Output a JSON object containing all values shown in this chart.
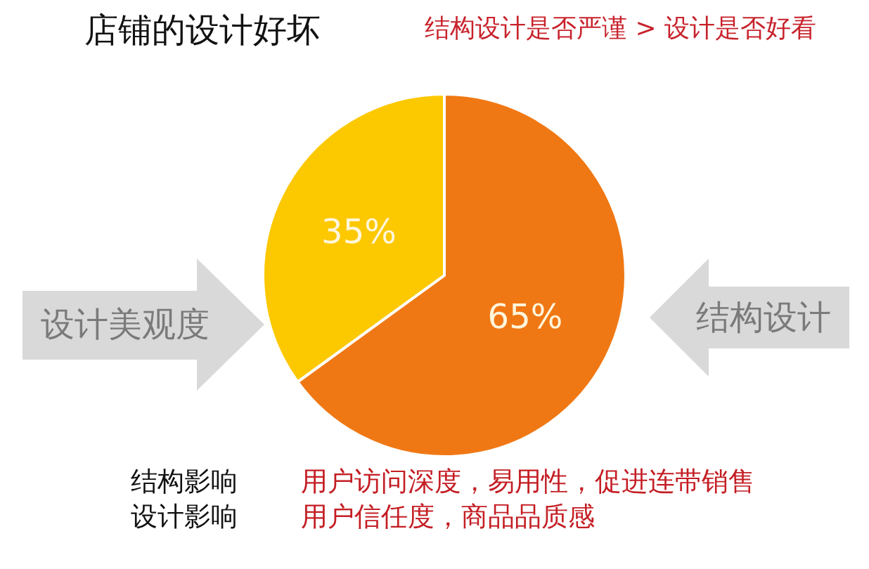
{
  "chart_data": {
    "type": "pie",
    "title": "店铺的设计好坏",
    "subtitle": "结构设计是否严谨 > 设计是否好看",
    "categories": [
      "结构设计",
      "设计美观度"
    ],
    "values": [
      65,
      35
    ],
    "colors": [
      "#f07814",
      "#fcc800"
    ],
    "value_labels": [
      "65%",
      "35%"
    ],
    "legend": false,
    "annotations": [
      "结构影响",
      "用户访问深度，易用性，促进连带销售",
      "设计影响",
      "用户信任度，商品品质感"
    ]
  }
}
